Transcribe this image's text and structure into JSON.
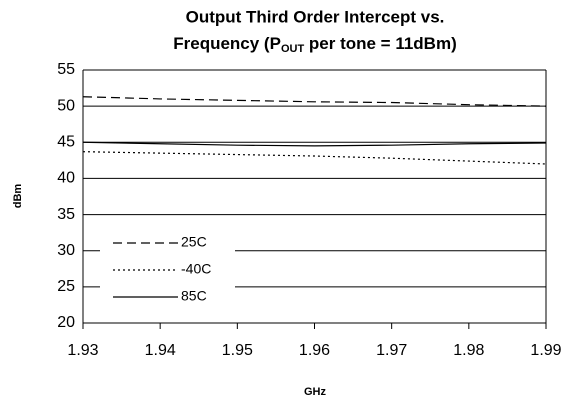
{
  "chart_data": {
    "type": "line",
    "title": {
      "line1": "Output Third Order Intercept vs.",
      "line2_start": "Frequency (P",
      "line2_subscript": "OUT",
      "line2_end": " per tone = 11dBm)"
    },
    "x_label": "GHz",
    "y_label": "dBm",
    "x": [
      1.93,
      1.94,
      1.95,
      1.96,
      1.97,
      1.98,
      1.99
    ],
    "series": [
      {
        "name": "25C",
        "color": "#000000",
        "dash": "dashed",
        "values": [
          51.3,
          51.0,
          50.8,
          50.6,
          50.5,
          50.2,
          50.0
        ]
      },
      {
        "name": "-40C",
        "color": "#000000",
        "dash": "dotted",
        "values": [
          43.7,
          43.5,
          43.3,
          43.1,
          42.8,
          42.4,
          42.0
        ]
      },
      {
        "name": "85C",
        "color": "#000000",
        "dash": "solid",
        "values": [
          45.0,
          44.8,
          44.6,
          44.5,
          44.6,
          44.8,
          44.9
        ]
      }
    ],
    "xlim": [
      1.93,
      1.99
    ],
    "xticks": [
      1.93,
      1.94,
      1.95,
      1.96,
      1.97,
      1.98,
      1.99
    ],
    "ylim": [
      20,
      55
    ],
    "yticks": [
      20,
      25,
      30,
      35,
      40,
      45,
      50,
      55
    ],
    "grid": true,
    "legend": "lower left"
  }
}
